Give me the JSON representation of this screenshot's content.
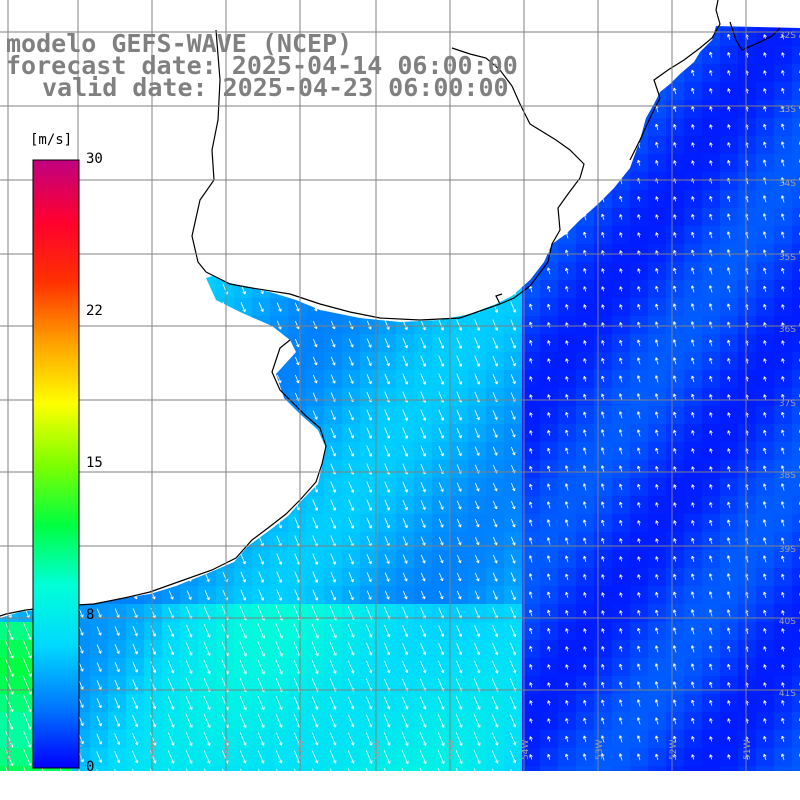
{
  "title": {
    "model": "modelo GEFS-WAVE (NCEP)",
    "forecast": "forecast date: 2025-04-14 06:00:00",
    "valid": "valid date: 2025-04-23 06:00:00"
  },
  "colorbar": {
    "unit": "[m/s]",
    "ticks": [
      "30",
      "22",
      "15",
      "8",
      "0"
    ],
    "tick_values": [
      30,
      22,
      15,
      8,
      0
    ],
    "min": 0,
    "max": 30,
    "colors": [
      "#0000ff",
      "#0078ff",
      "#00d8ff",
      "#00ffd8",
      "#00ff40",
      "#80ff00",
      "#ffff00",
      "#ffa000",
      "#ff3000",
      "#ff0030",
      "#c00080"
    ]
  },
  "map": {
    "land_color": "#ffffff",
    "grid_color": "#808080",
    "longitude_labels": [
      "61W",
      "60W",
      "59W",
      "58W",
      "57W",
      "56W",
      "55W",
      "54W",
      "53W",
      "52W",
      "51W"
    ],
    "latitude_labels": [
      "32S",
      "33S",
      "34S",
      "35S",
      "36S",
      "37S",
      "38S",
      "39S",
      "40S",
      "41S"
    ],
    "wind_field": "sea-surface wind speed and direction (arrows)"
  }
}
